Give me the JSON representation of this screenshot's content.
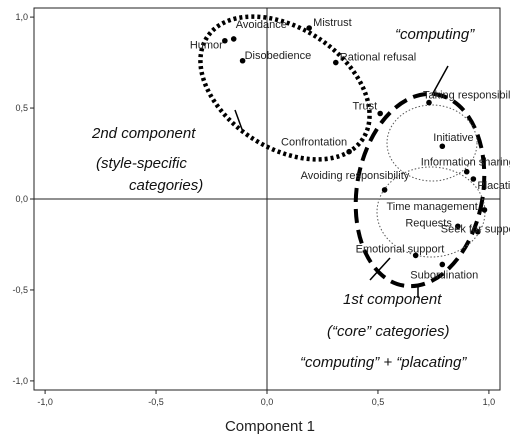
{
  "chart_data": {
    "type": "scatter",
    "title": "",
    "xlabel": "Component 1",
    "ylabel": "",
    "xlim": [
      -1.05,
      1.05
    ],
    "ylim": [
      -1.05,
      1.05
    ],
    "x_ticks": [
      "-1,0",
      "-0,5",
      "0,0",
      "0,5",
      "1,0"
    ],
    "y_ticks": [
      "1,0",
      "0,5",
      "0,0",
      "-0,5",
      "-1,0"
    ],
    "grid": false,
    "points": [
      {
        "label": "Mistrust",
        "x": 0.19,
        "y": 0.94
      },
      {
        "label": "Avoidance",
        "x": -0.15,
        "y": 0.88
      },
      {
        "label": "Humor",
        "x": -0.19,
        "y": 0.87
      },
      {
        "label": "Disobedience",
        "x": -0.11,
        "y": 0.76
      },
      {
        "label": "Rational refusal",
        "x": 0.31,
        "y": 0.75
      },
      {
        "label": "Trust",
        "x": 0.51,
        "y": 0.47
      },
      {
        "label": "Taking responsibility",
        "x": 0.73,
        "y": 0.53
      },
      {
        "label": "Initiative",
        "x": 0.79,
        "y": 0.29
      },
      {
        "label": "Confrontation",
        "x": 0.37,
        "y": 0.26
      },
      {
        "label": "Information sharing",
        "x": 0.9,
        "y": 0.15
      },
      {
        "label": "Placating",
        "x": 0.93,
        "y": 0.11
      },
      {
        "label": "Avoiding responsibility",
        "x": 0.53,
        "y": 0.05
      },
      {
        "label": "Time management",
        "x": 0.98,
        "y": -0.06
      },
      {
        "label": "Requests",
        "x": 0.86,
        "y": -0.15
      },
      {
        "label": "Seek for support",
        "x": 0.95,
        "y": -0.18
      },
      {
        "label": "Emotional support",
        "x": 0.67,
        "y": -0.31
      },
      {
        "label": "Subordination",
        "x": 0.79,
        "y": -0.36
      }
    ],
    "annotations": [
      {
        "text": "“computing”"
      },
      {
        "text": "2nd component"
      },
      {
        "text": "(style-specific"
      },
      {
        "text": "categories)"
      },
      {
        "text": "1st component"
      },
      {
        "text": "(“core” categories)"
      },
      {
        "text": "“computing” + “placating”"
      }
    ]
  }
}
